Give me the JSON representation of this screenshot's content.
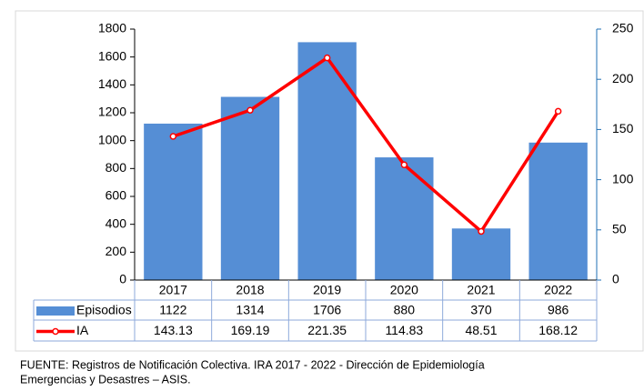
{
  "chart_data": {
    "type": "bar",
    "categories": [
      "2017",
      "2018",
      "2019",
      "2020",
      "2021",
      "2022"
    ],
    "series": [
      {
        "name": "Episodios",
        "type": "bar",
        "color": "#558ed5",
        "values": [
          1122,
          1314,
          1706,
          880,
          370,
          986
        ]
      },
      {
        "name": "IA",
        "type": "line",
        "axis": "y2",
        "color": "#ff0000",
        "values": [
          143.13,
          169.19,
          221.35,
          114.83,
          48.51,
          168.12
        ]
      }
    ],
    "ylim": [
      0,
      1800
    ],
    "yticks": [
      0,
      200,
      400,
      600,
      800,
      1000,
      1200,
      1400,
      1600,
      1800
    ],
    "y2lim": [
      0,
      250
    ],
    "y2ticks": [
      0,
      50,
      100,
      150,
      200,
      250
    ],
    "grid": false,
    "note": [
      "FUENTE:   Registros de Notificación Colectiva. IRA  2017 - 2022 - Dirección de Epidemiología",
      "Emergencias y Desastres – ASIS."
    ]
  }
}
